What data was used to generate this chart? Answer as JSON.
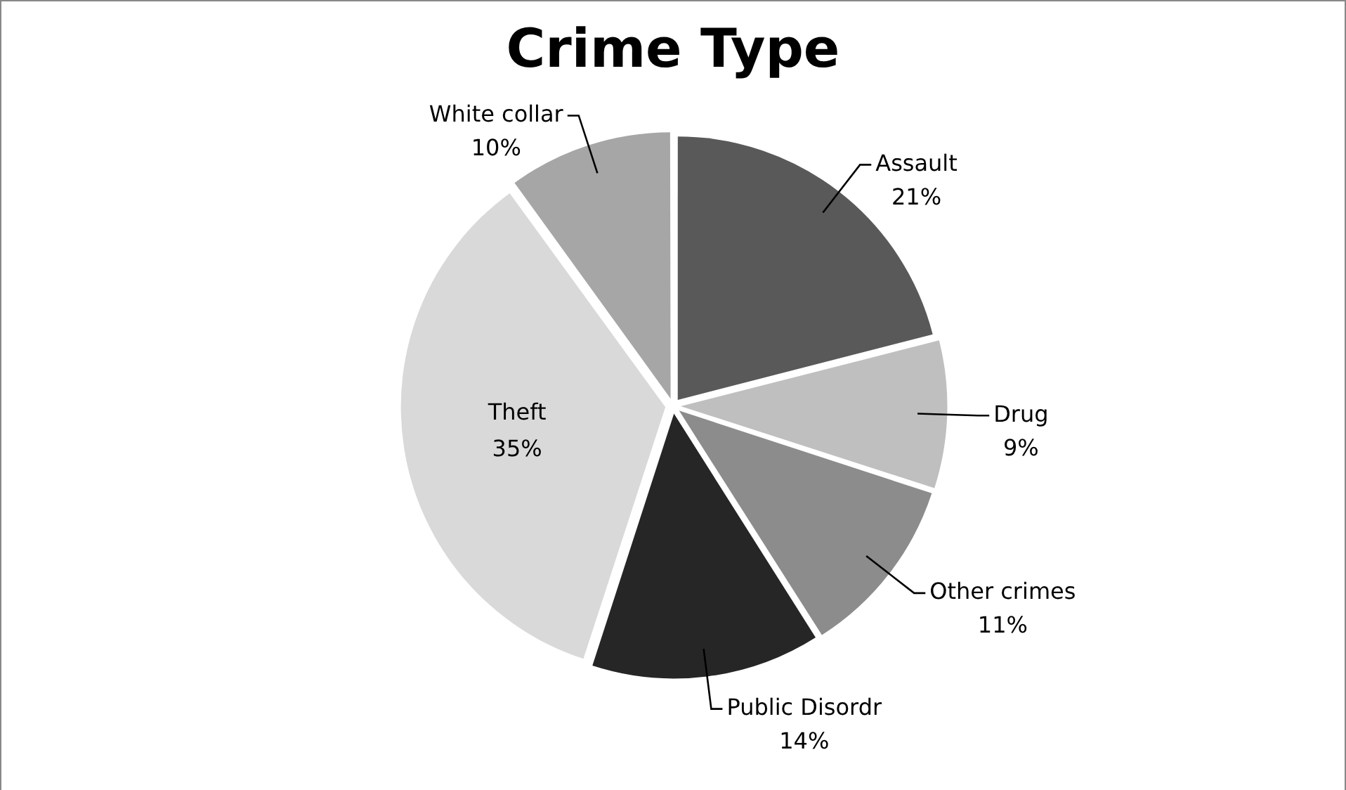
{
  "chart_data": {
    "type": "pie",
    "title": "Crime Type",
    "categories": [
      "Assault",
      "Drug",
      "Other crimes",
      "Public Disordr",
      "Theft",
      "White collar"
    ],
    "values": [
      21,
      9,
      11,
      14,
      35,
      10
    ],
    "colors": [
      "#595959",
      "#bfbfbf",
      "#8c8c8c",
      "#262626",
      "#d9d9d9",
      "#a6a6a6"
    ],
    "value_labels": [
      "21%",
      "9%",
      "11%",
      "14%",
      "35%",
      "10%"
    ],
    "legend": false
  }
}
